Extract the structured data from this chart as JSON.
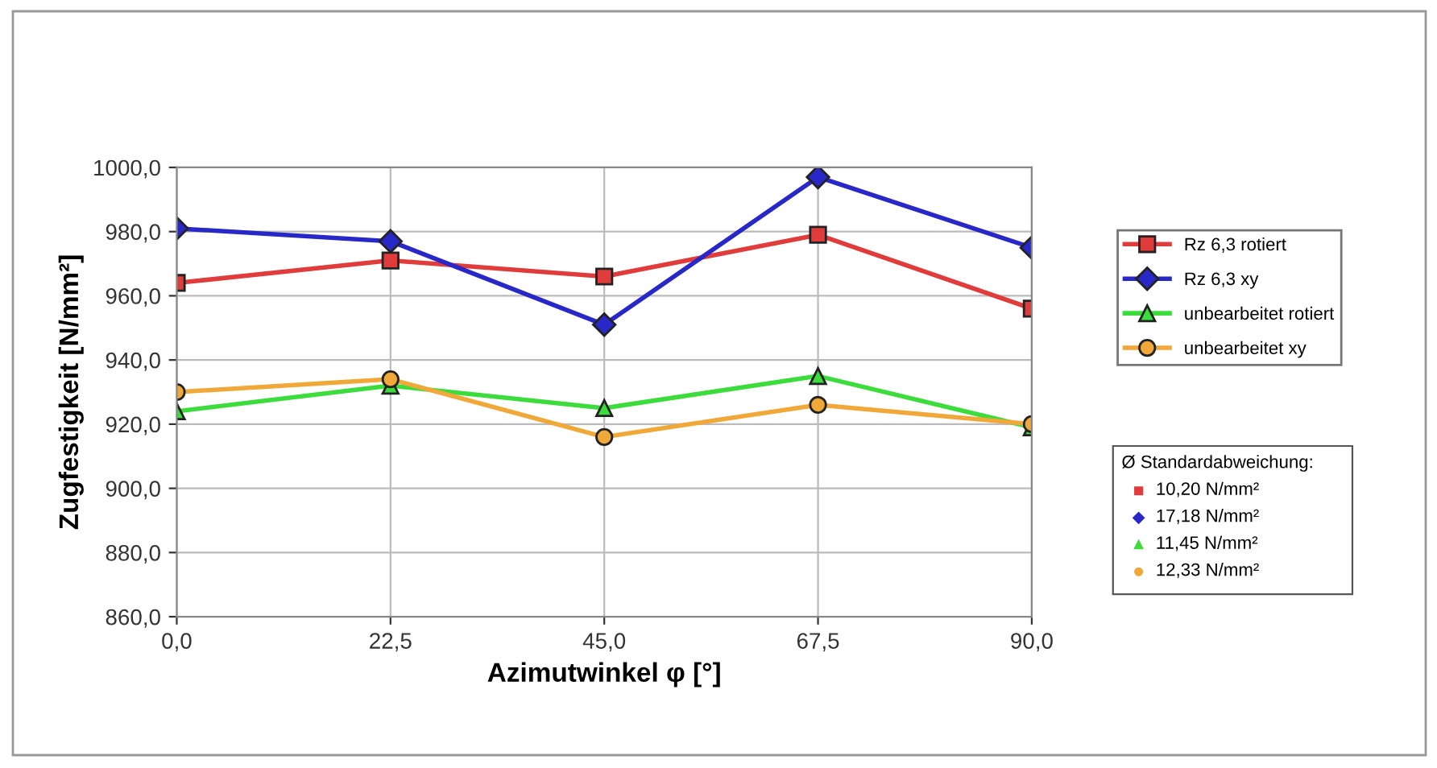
{
  "chart_data": {
    "type": "line",
    "xlabel": "Azimutwinkel φ [°]",
    "ylabel": "Zugfestigkeit [N/mm²]",
    "x": [
      0,
      22.5,
      45,
      67.5,
      90
    ],
    "xlim": [
      0,
      90
    ],
    "xticks": [
      {
        "value": 0,
        "label": "0,0"
      },
      {
        "value": 22.5,
        "label": "22,5"
      },
      {
        "value": 45,
        "label": "45,0"
      },
      {
        "value": 67.5,
        "label": "67,5"
      },
      {
        "value": 90,
        "label": "90,0"
      }
    ],
    "ylim": [
      860,
      1000
    ],
    "yticks": [
      {
        "value": 860,
        "label": "860,0"
      },
      {
        "value": 880,
        "label": "880,0"
      },
      {
        "value": 900,
        "label": "900,0"
      },
      {
        "value": 920,
        "label": "920,0"
      },
      {
        "value": 940,
        "label": "940,0"
      },
      {
        "value": 960,
        "label": "960,0"
      },
      {
        "value": 980,
        "label": "980,0"
      },
      {
        "value": 1000,
        "label": "1000,0"
      }
    ],
    "grid": true,
    "legend": "right",
    "line_style": "solid",
    "series": [
      {
        "name": "Rz 6,3 rotiert",
        "color": "#e03c3c",
        "marker": "square",
        "values": [
          964,
          971,
          966,
          979,
          956
        ]
      },
      {
        "name": "Rz 6,3 xy",
        "color": "#2828c8",
        "marker": "diamond",
        "values": [
          981,
          977,
          951,
          997,
          975
        ]
      },
      {
        "name": "unbearbeitet rotiert",
        "color": "#3cdc3c",
        "marker": "triangle",
        "values": [
          924,
          932,
          925,
          935,
          919
        ]
      },
      {
        "name": "unbearbeitet xy",
        "color": "#f0a838",
        "marker": "circle",
        "values": [
          930,
          934,
          916,
          926,
          920
        ]
      }
    ],
    "annotations": [
      "Ø Standardabweichung:",
      "10,20 N/mm²",
      "17,18 N/mm²",
      "11,45 N/mm²",
      "12,33 N/mm²"
    ]
  }
}
